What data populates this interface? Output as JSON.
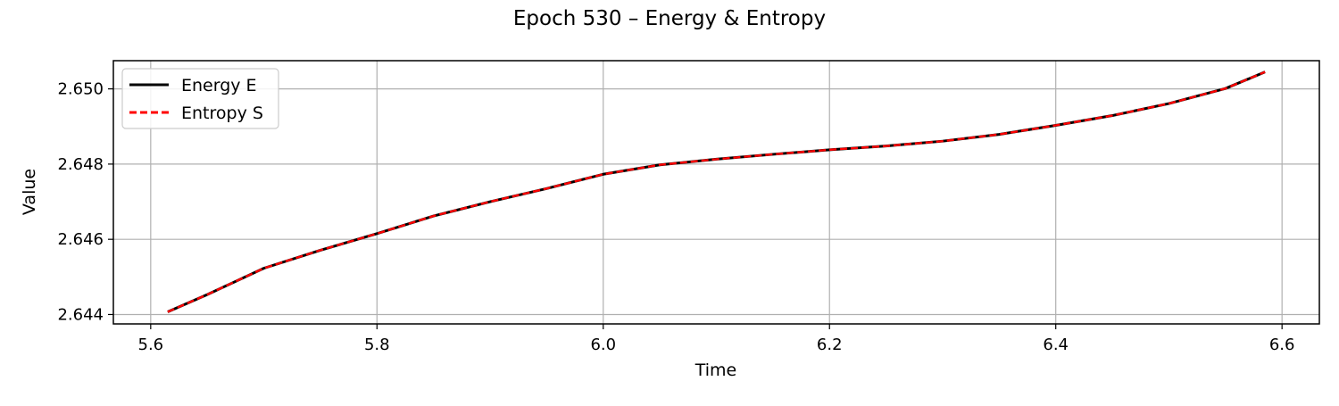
{
  "chart_data": {
    "type": "line",
    "title": "Epoch 530 – Energy & Entropy",
    "xlabel": "Time",
    "ylabel": "Value",
    "xlim": [
      5.567,
      6.633
    ],
    "ylim": [
      2.64375,
      2.65075
    ],
    "xticks": [
      5.6,
      5.8,
      6.0,
      6.2,
      6.4,
      6.6
    ],
    "xtick_labels": [
      "5.6",
      "5.8",
      "6.0",
      "6.2",
      "6.4",
      "6.6"
    ],
    "yticks": [
      2.644,
      2.646,
      2.648,
      2.65
    ],
    "ytick_labels": [
      "2.644",
      "2.646",
      "2.648",
      "2.650"
    ],
    "grid": true,
    "legend_position": "top-left",
    "x": [
      5.615,
      5.65,
      5.7,
      5.75,
      5.8,
      5.85,
      5.9,
      5.95,
      6.0,
      6.05,
      6.1,
      6.15,
      6.2,
      6.25,
      6.3,
      6.35,
      6.4,
      6.45,
      6.5,
      6.55,
      6.585
    ],
    "series": [
      {
        "name": "Energy E",
        "color": "#000000",
        "style": "solid",
        "values": [
          2.64407,
          2.64453,
          2.64523,
          2.64571,
          2.64615,
          2.64662,
          2.647,
          2.64735,
          2.64773,
          2.64798,
          2.64813,
          2.64826,
          2.64838,
          2.64848,
          2.64861,
          2.64879,
          2.64903,
          2.64929,
          2.64961,
          2.65001,
          2.65045
        ]
      },
      {
        "name": "Entropy S",
        "color": "#ff0000",
        "style": "dashed",
        "values": [
          2.64407,
          2.64453,
          2.64523,
          2.64571,
          2.64615,
          2.64662,
          2.647,
          2.64735,
          2.64773,
          2.64798,
          2.64813,
          2.64826,
          2.64838,
          2.64848,
          2.64861,
          2.64879,
          2.64903,
          2.64929,
          2.64961,
          2.65001,
          2.65045
        ]
      }
    ]
  }
}
